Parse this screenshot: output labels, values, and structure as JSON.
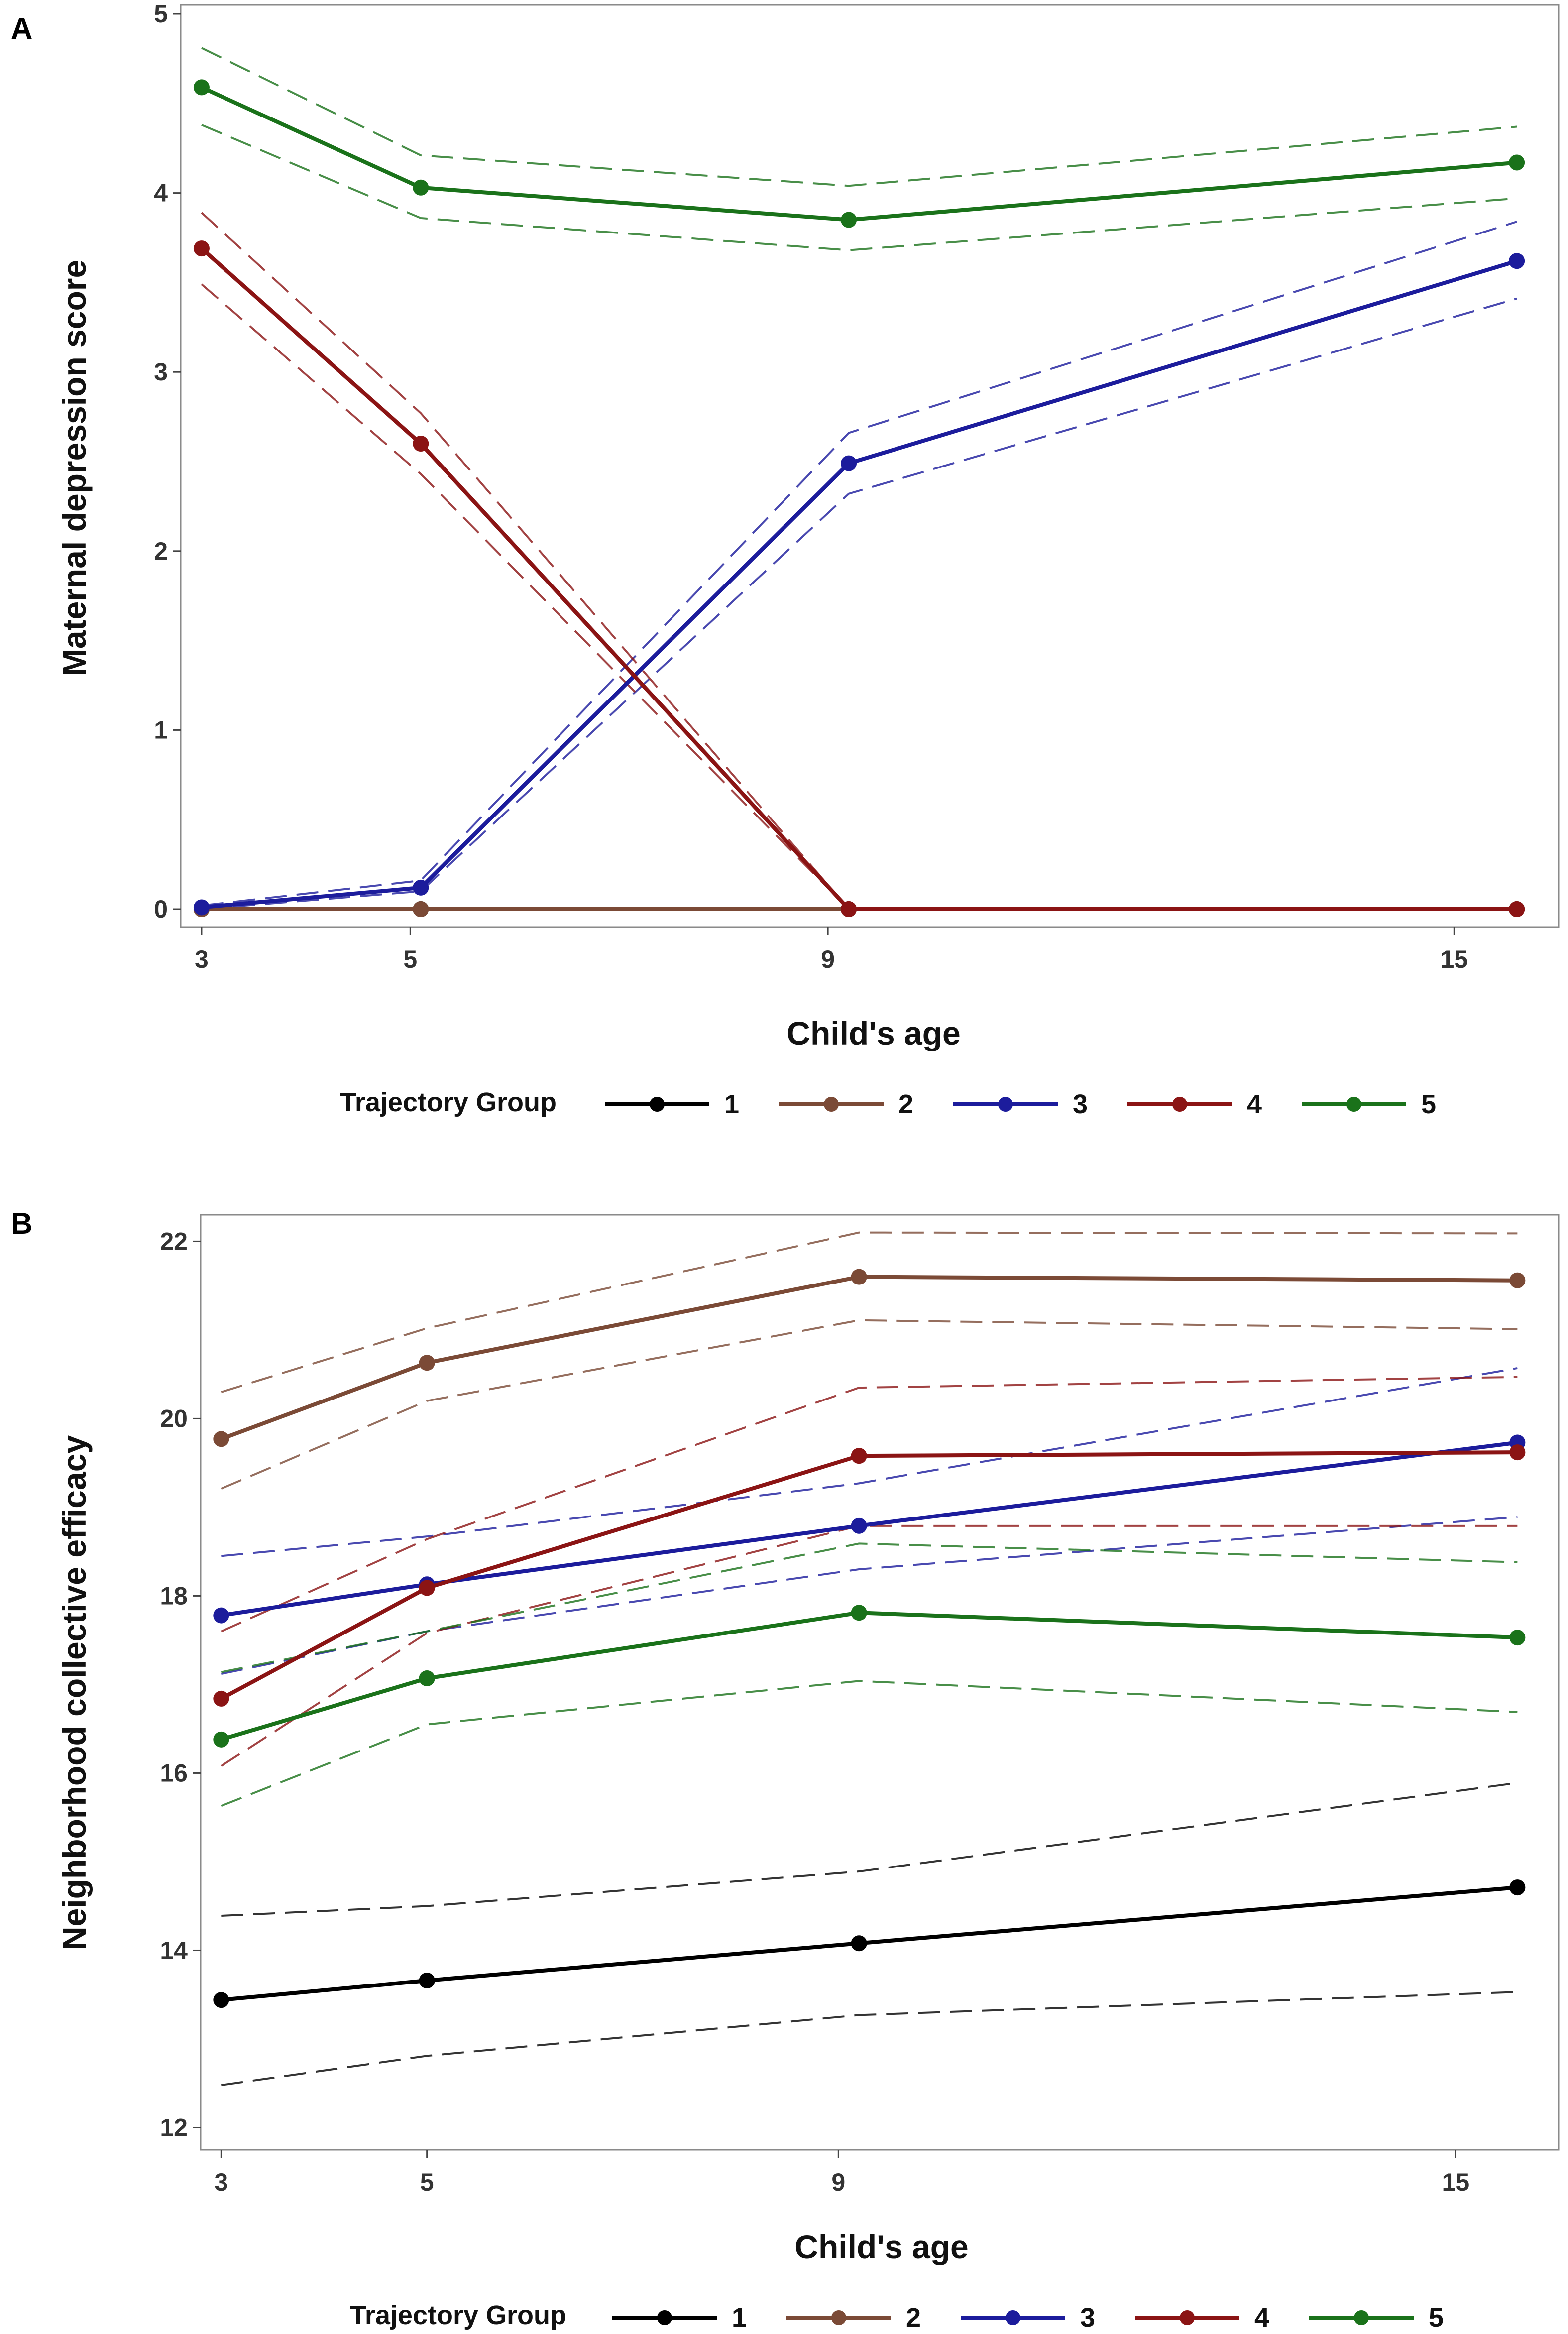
{
  "chart_data": [
    {
      "panel": "A",
      "type": "line",
      "title": "",
      "xlabel": "Child's age",
      "ylabel": "Maternal depression score",
      "x": [
        3,
        5,
        9,
        15
      ],
      "x_positions_age": [
        3,
        5.1,
        9.2,
        15.6
      ],
      "xticks": [
        3,
        5,
        9,
        15
      ],
      "xlim": [
        2.8,
        16
      ],
      "yticks": [
        0,
        1,
        2,
        3,
        4,
        5
      ],
      "ylim": [
        -0.1,
        5.05
      ],
      "grid": false,
      "legend": {
        "title": "Trajectory Group",
        "placement": "bottom",
        "entries": [
          "1",
          "2",
          "3",
          "4",
          "5"
        ]
      },
      "series": [
        {
          "name": "1",
          "color": "#000000",
          "values": [
            0,
            0,
            0,
            0
          ],
          "lower": null,
          "upper": null
        },
        {
          "name": "2",
          "color": "#7b4a36",
          "values": [
            0,
            0,
            0,
            0
          ],
          "lower": null,
          "upper": null
        },
        {
          "name": "3",
          "color": "#1c1c9c",
          "values": [
            0.01,
            0.12,
            2.49,
            3.62
          ],
          "lower": [
            0.0,
            0.1,
            2.32,
            3.41
          ],
          "upper": [
            0.02,
            0.16,
            2.66,
            3.84
          ]
        },
        {
          "name": "4",
          "color": "#8b1414",
          "values": [
            3.69,
            2.6,
            0,
            0
          ],
          "lower": [
            3.49,
            2.43,
            0,
            0
          ],
          "upper": [
            3.89,
            2.77,
            0,
            0
          ]
        },
        {
          "name": "5",
          "color": "#1a721a",
          "values": [
            4.59,
            4.03,
            3.85,
            4.17
          ],
          "lower": [
            4.38,
            3.86,
            3.68,
            3.97
          ],
          "upper": [
            4.81,
            4.21,
            4.04,
            4.37
          ]
        }
      ]
    },
    {
      "panel": "B",
      "type": "line",
      "title": "",
      "xlabel": "Child's age",
      "ylabel": "Neighborhood collective efficacy",
      "x": [
        3,
        5,
        9,
        15
      ],
      "x_positions_age": [
        3,
        5.0,
        9.2,
        15.6
      ],
      "xticks": [
        3,
        5,
        9,
        15
      ],
      "xlim": [
        2.8,
        16
      ],
      "yticks": [
        12,
        14,
        16,
        18,
        20,
        22
      ],
      "ylim": [
        11.75,
        22.3
      ],
      "grid": false,
      "legend": {
        "title": "Trajectory Group",
        "placement": "bottom",
        "entries": [
          "1",
          "2",
          "3",
          "4",
          "5"
        ]
      },
      "series": [
        {
          "name": "1",
          "color": "#000000",
          "values": [
            13.44,
            13.66,
            14.08,
            14.71
          ],
          "lower": [
            12.48,
            12.81,
            13.27,
            13.53
          ],
          "upper": [
            14.39,
            14.5,
            14.89,
            15.89
          ]
        },
        {
          "name": "2",
          "color": "#7b4a36",
          "values": [
            19.77,
            20.63,
            21.6,
            21.56
          ],
          "lower": [
            19.21,
            20.2,
            21.11,
            21.01
          ],
          "upper": [
            20.3,
            21.02,
            22.1,
            22.09
          ]
        },
        {
          "name": "3",
          "color": "#1c1c9c",
          "values": [
            17.78,
            18.13,
            18.79,
            19.73
          ],
          "lower": [
            17.12,
            17.6,
            18.3,
            18.89
          ],
          "upper": [
            18.45,
            18.67,
            19.27,
            20.57
          ]
        },
        {
          "name": "4",
          "color": "#8b1414",
          "values": [
            16.84,
            18.09,
            19.58,
            19.62
          ],
          "lower": [
            16.08,
            17.58,
            18.79,
            18.79
          ],
          "upper": [
            17.6,
            18.64,
            20.35,
            20.47
          ]
        },
        {
          "name": "5",
          "color": "#1a721a",
          "values": [
            16.38,
            17.07,
            17.81,
            17.53
          ],
          "lower": [
            15.63,
            16.55,
            17.04,
            16.69
          ],
          "upper": [
            17.14,
            17.6,
            18.59,
            18.38
          ]
        }
      ]
    }
  ]
}
